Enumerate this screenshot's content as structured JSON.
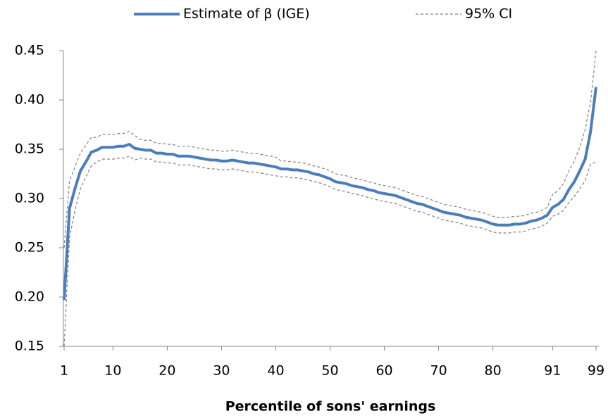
{
  "chart_data": {
    "type": "line",
    "x_label": "Percentile of sons' earnings",
    "x": [
      1,
      2,
      3,
      4,
      5,
      6,
      7,
      8,
      9,
      10,
      11,
      12,
      13,
      14,
      15,
      16,
      17,
      18,
      19,
      20,
      21,
      22,
      23,
      24,
      25,
      26,
      27,
      28,
      29,
      30,
      31,
      32,
      33,
      34,
      35,
      36,
      37,
      38,
      39,
      40,
      41,
      42,
      43,
      44,
      45,
      46,
      47,
      48,
      49,
      50,
      51,
      52,
      53,
      54,
      55,
      56,
      57,
      58,
      59,
      60,
      61,
      62,
      63,
      64,
      65,
      66,
      67,
      68,
      69,
      70,
      71,
      72,
      73,
      74,
      75,
      76,
      77,
      78,
      79,
      80,
      81,
      82,
      83,
      84,
      85,
      86,
      87,
      88,
      89,
      90,
      91,
      92,
      93,
      94,
      95,
      96,
      97,
      98,
      99
    ],
    "series": [
      {
        "name": "Estimate of β (IGE)",
        "color": "#4a7ebb",
        "values": [
          0.197,
          0.29,
          0.31,
          0.328,
          0.337,
          0.347,
          0.349,
          0.352,
          0.352,
          0.352,
          0.353,
          0.353,
          0.355,
          0.351,
          0.35,
          0.349,
          0.349,
          0.346,
          0.346,
          0.345,
          0.345,
          0.343,
          0.343,
          0.343,
          0.342,
          0.341,
          0.34,
          0.339,
          0.339,
          0.338,
          0.338,
          0.339,
          0.338,
          0.337,
          0.336,
          0.336,
          0.335,
          0.334,
          0.333,
          0.332,
          0.33,
          0.33,
          0.329,
          0.329,
          0.328,
          0.327,
          0.325,
          0.324,
          0.322,
          0.32,
          0.317,
          0.316,
          0.315,
          0.313,
          0.312,
          0.311,
          0.309,
          0.308,
          0.306,
          0.305,
          0.304,
          0.303,
          0.301,
          0.299,
          0.297,
          0.295,
          0.294,
          0.292,
          0.29,
          0.288,
          0.286,
          0.285,
          0.284,
          0.283,
          0.281,
          0.28,
          0.279,
          0.278,
          0.276,
          0.274,
          0.273,
          0.273,
          0.273,
          0.274,
          0.274,
          0.275,
          0.277,
          0.278,
          0.28,
          0.283,
          0.291,
          0.294,
          0.299,
          0.309,
          0.317,
          0.328,
          0.34,
          0.368,
          0.413
        ]
      },
      {
        "name": "95% CI",
        "color": "#808080",
        "dashed": true,
        "upper": [
          0.25,
          0.318,
          0.332,
          0.346,
          0.354,
          0.362,
          0.362,
          0.365,
          0.365,
          0.365,
          0.366,
          0.366,
          0.368,
          0.364,
          0.36,
          0.359,
          0.359,
          0.356,
          0.356,
          0.355,
          0.355,
          0.353,
          0.353,
          0.353,
          0.352,
          0.351,
          0.35,
          0.349,
          0.349,
          0.348,
          0.348,
          0.349,
          0.348,
          0.347,
          0.346,
          0.346,
          0.345,
          0.344,
          0.343,
          0.342,
          0.338,
          0.338,
          0.337,
          0.337,
          0.336,
          0.335,
          0.333,
          0.332,
          0.33,
          0.328,
          0.325,
          0.324,
          0.323,
          0.321,
          0.32,
          0.319,
          0.317,
          0.316,
          0.314,
          0.313,
          0.312,
          0.311,
          0.309,
          0.307,
          0.305,
          0.303,
          0.302,
          0.3,
          0.298,
          0.296,
          0.294,
          0.293,
          0.292,
          0.291,
          0.289,
          0.288,
          0.287,
          0.286,
          0.284,
          0.282,
          0.281,
          0.281,
          0.281,
          0.282,
          0.282,
          0.283,
          0.285,
          0.286,
          0.288,
          0.291,
          0.304,
          0.308,
          0.315,
          0.328,
          0.338,
          0.352,
          0.37,
          0.398,
          0.45
        ],
        "lower": [
          0.15,
          0.26,
          0.288,
          0.31,
          0.322,
          0.333,
          0.337,
          0.34,
          0.34,
          0.34,
          0.341,
          0.341,
          0.343,
          0.339,
          0.341,
          0.34,
          0.34,
          0.337,
          0.337,
          0.336,
          0.336,
          0.334,
          0.334,
          0.334,
          0.333,
          0.332,
          0.331,
          0.33,
          0.33,
          0.329,
          0.329,
          0.33,
          0.329,
          0.328,
          0.327,
          0.327,
          0.326,
          0.325,
          0.324,
          0.323,
          0.322,
          0.322,
          0.321,
          0.321,
          0.32,
          0.319,
          0.317,
          0.316,
          0.314,
          0.312,
          0.309,
          0.308,
          0.307,
          0.305,
          0.304,
          0.303,
          0.301,
          0.3,
          0.298,
          0.297,
          0.296,
          0.295,
          0.293,
          0.291,
          0.289,
          0.287,
          0.286,
          0.284,
          0.282,
          0.28,
          0.278,
          0.277,
          0.276,
          0.275,
          0.273,
          0.272,
          0.271,
          0.27,
          0.268,
          0.266,
          0.265,
          0.265,
          0.265,
          0.266,
          0.266,
          0.267,
          0.269,
          0.27,
          0.272,
          0.275,
          0.282,
          0.284,
          0.288,
          0.296,
          0.302,
          0.31,
          0.318,
          0.335,
          0.337
        ]
      }
    ],
    "xlim": [
      1,
      99
    ],
    "xticks": [
      1,
      10,
      20,
      30,
      40,
      50,
      60,
      70,
      80,
      91,
      99
    ],
    "ylim": [
      0.15,
      0.45
    ],
    "yticks": [
      {
        "value": 0.15,
        "label": "0.15"
      },
      {
        "value": 0.2,
        "label": "0.20"
      },
      {
        "value": 0.25,
        "label": "0.25"
      },
      {
        "value": 0.3,
        "label": "0.30"
      },
      {
        "value": 0.35,
        "label": "0.35"
      },
      {
        "value": 0.4,
        "label": "0.40"
      },
      {
        "value": 0.45,
        "label": "0.45"
      }
    ],
    "grid": false,
    "legend": "top"
  }
}
